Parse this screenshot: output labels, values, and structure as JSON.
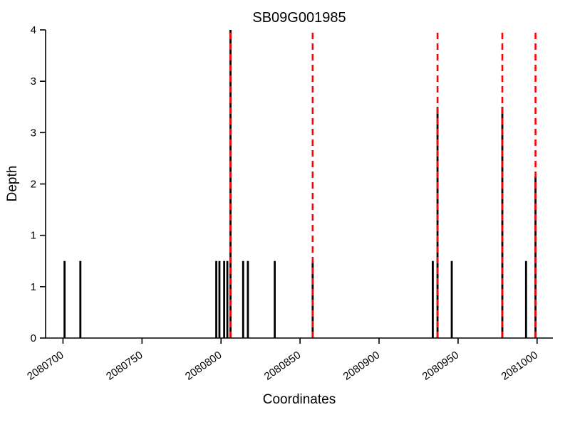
{
  "chart_data": {
    "type": "bar",
    "title": "SB09G001985",
    "xlabel": "Coordinates",
    "ylabel": "Depth",
    "xlim": [
      2080689,
      2081010
    ],
    "ylim": [
      0,
      4
    ],
    "x_ticks": [
      2080700,
      2080750,
      2080800,
      2080850,
      2080900,
      2080950,
      2081000
    ],
    "y_ticks": [
      {
        "value": 0,
        "label": "0"
      },
      {
        "value": 0.6667,
        "label": "1"
      },
      {
        "value": 1.3333,
        "label": "1"
      },
      {
        "value": 2,
        "label": "2"
      },
      {
        "value": 2.6667,
        "label": "3"
      },
      {
        "value": 3.3333,
        "label": "3"
      },
      {
        "value": 4,
        "label": "4"
      }
    ],
    "bars": [
      {
        "x": 2080701,
        "depth": 1
      },
      {
        "x": 2080711,
        "depth": 1
      },
      {
        "x": 2080797,
        "depth": 1
      },
      {
        "x": 2080799,
        "depth": 1
      },
      {
        "x": 2080802,
        "depth": 1
      },
      {
        "x": 2080804,
        "depth": 1
      },
      {
        "x": 2080806,
        "depth": 4
      },
      {
        "x": 2080814,
        "depth": 1
      },
      {
        "x": 2080817,
        "depth": 1
      },
      {
        "x": 2080834,
        "depth": 1
      },
      {
        "x": 2080858,
        "depth": 1
      },
      {
        "x": 2080934,
        "depth": 1
      },
      {
        "x": 2080937,
        "depth": 3
      },
      {
        "x": 2080946,
        "depth": 1
      },
      {
        "x": 2080978,
        "depth": 3
      },
      {
        "x": 2080993,
        "depth": 1
      },
      {
        "x": 2080999,
        "depth": 2.1
      }
    ],
    "red_dashed_x": [
      2080806,
      2080858,
      2080937,
      2080978,
      2080999
    ],
    "colors": {
      "bar": "#000000",
      "dashed_line": "#ff0000",
      "axis": "#000000"
    },
    "legend": "none",
    "grid": "off"
  }
}
